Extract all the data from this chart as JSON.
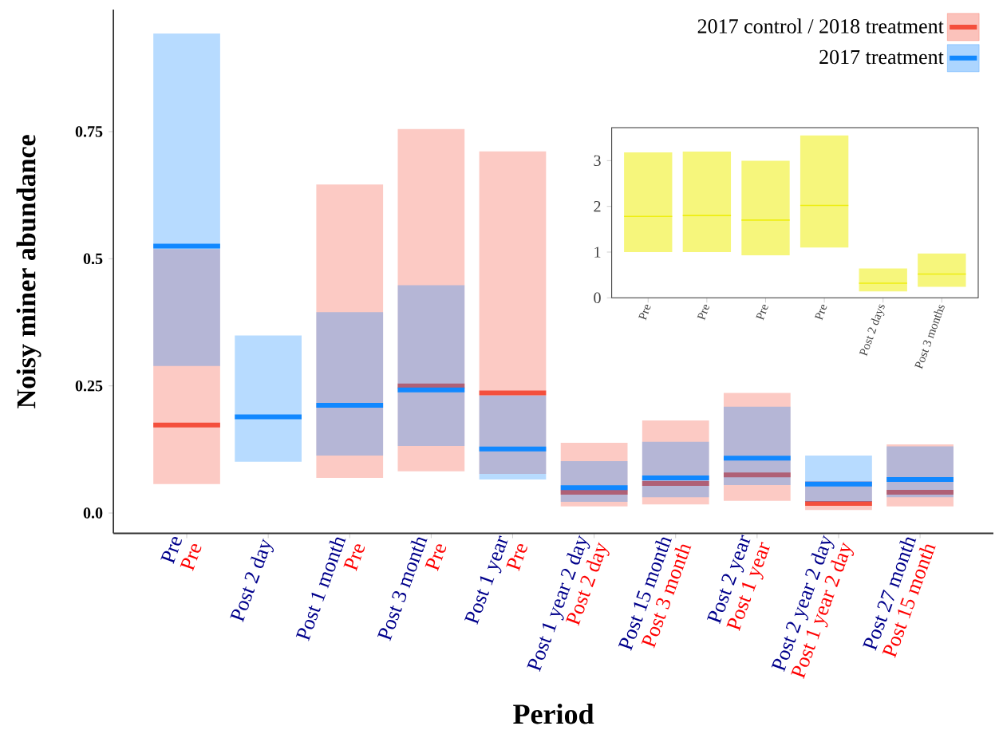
{
  "chart_data": [
    {
      "type": "box",
      "xlabel": "Period",
      "ylabel": "Noisy miner abundance",
      "categories": [
        "Pre",
        "Post 2 day",
        "Post 1 month",
        "Post 3 month",
        "Post 1 year",
        "Post 1 year 2 day",
        "Post 15 month",
        "Post 2 year",
        "Post 2 year 2 day",
        "Post 27 month"
      ],
      "annotations": [
        "Pre",
        "Pre",
        "Pre",
        "Pre",
        "Post 2 day",
        "Post 3 month",
        "Post 1 year",
        "Post 1 year 2 day",
        "Post 15 month"
      ],
      "ylim": [
        -0.04,
        0.99
      ],
      "yticks": [
        {
          "value": 0,
          "label": "0.0"
        },
        {
          "value": 0.25,
          "label": "0.25"
        },
        0.5,
        {
          "value": 0.75,
          "label": "0.75"
        }
      ],
      "legend": "top right",
      "series": [
        {
          "name": "2017 control / 2018 treatment",
          "color": "#f44f3c",
          "boxes": [
            {
              "low": 0.057,
              "q1": 0.057,
              "median": 0.173,
              "q3": 0.519,
              "high": 0.519
            },
            null,
            {
              "low": 0.069,
              "q1": 0.069,
              "median": null,
              "q3": 0.646,
              "high": 0.646
            },
            {
              "low": 0.082,
              "q1": 0.082,
              "median": 0.25,
              "q3": 0.755,
              "high": 0.755
            },
            {
              "low": 0.077,
              "q1": 0.077,
              "median": 0.236,
              "q3": 0.711,
              "high": 0.711
            },
            {
              "low": 0.013,
              "q1": 0.013,
              "median": 0.041,
              "q3": 0.138,
              "high": 0.138
            },
            {
              "low": 0.017,
              "q1": 0.017,
              "median": 0.058,
              "q3": 0.182,
              "high": 0.182
            },
            {
              "low": 0.024,
              "q1": 0.024,
              "median": 0.075,
              "q3": 0.236,
              "high": 0.236
            },
            {
              "low": 0.006,
              "q1": 0.006,
              "median": 0.019,
              "q3": 0.063,
              "high": 0.063
            },
            {
              "low": 0.013,
              "q1": 0.013,
              "median": 0.041,
              "q3": 0.135,
              "high": 0.135
            }
          ]
        },
        {
          "name": "2017 treatment",
          "color": "#1188ff",
          "boxes": [
            {
              "low": 0.289,
              "q1": 0.289,
              "median": 0.525,
              "q3": 0.943,
              "high": 0.943
            },
            {
              "low": 0.101,
              "q1": 0.101,
              "median": 0.189,
              "q3": 0.349,
              "high": 0.349
            },
            {
              "low": 0.113,
              "q1": 0.113,
              "median": 0.212,
              "q3": 0.395,
              "high": 0.395
            },
            {
              "low": 0.132,
              "q1": 0.132,
              "median": 0.242,
              "q3": 0.448,
              "high": 0.448
            },
            {
              "low": 0.066,
              "q1": 0.066,
              "median": 0.126,
              "q3": 0.231,
              "high": 0.231
            },
            {
              "low": 0.022,
              "q1": 0.022,
              "median": 0.05,
              "q3": 0.102,
              "high": 0.102
            },
            {
              "low": 0.031,
              "q1": 0.031,
              "median": 0.069,
              "q3": 0.14,
              "high": 0.14
            },
            {
              "low": 0.055,
              "q1": 0.055,
              "median": 0.108,
              "q3": 0.209,
              "high": 0.209
            },
            {
              "low": 0.022,
              "q1": 0.022,
              "median": 0.057,
              "q3": 0.113,
              "high": 0.113
            },
            {
              "low": 0.031,
              "q1": 0.031,
              "median": 0.066,
              "q3": 0.131,
              "high": 0.131
            }
          ]
        }
      ]
    },
    {
      "type": "box",
      "categories": [
        "Pre",
        "Pre",
        "Pre",
        "Pre",
        "Post 2 days",
        "Post 3 months"
      ],
      "ylim": [
        0,
        3.72
      ],
      "yticks": [
        0,
        1,
        2,
        3
      ],
      "series": [
        {
          "color": "#eeee10",
          "boxes": [
            {
              "low": 1.0,
              "q1": 1.0,
              "median": 1.78,
              "q3": 3.18,
              "high": 3.18
            },
            {
              "low": 1.0,
              "q1": 1.0,
              "median": 1.8,
              "q3": 3.2,
              "high": 3.2
            },
            {
              "low": 0.93,
              "q1": 0.93,
              "median": 1.7,
              "q3": 3.0,
              "high": 3.0
            },
            {
              "low": 1.1,
              "q1": 1.1,
              "median": 2.02,
              "q3": 3.55,
              "high": 3.55
            },
            {
              "low": 0.14,
              "q1": 0.14,
              "median": 0.32,
              "q3": 0.64,
              "high": 0.64
            },
            {
              "low": 0.24,
              "q1": 0.24,
              "median": 0.52,
              "q3": 0.97,
              "high": 0.97
            }
          ]
        }
      ]
    }
  ]
}
